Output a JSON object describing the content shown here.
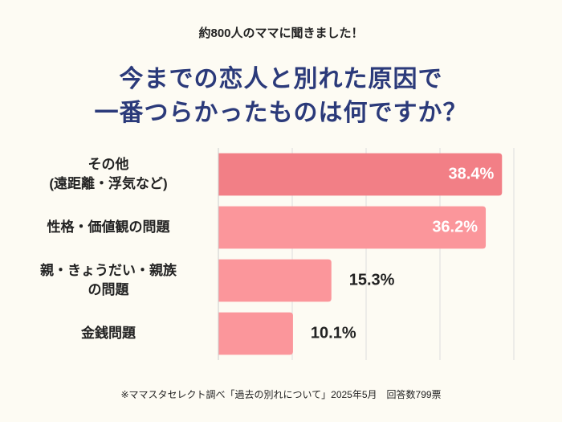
{
  "chart_data": {
    "type": "barh",
    "subtitle": "約800人のママに聞きました！",
    "title": "今までの恋人と別れた原因で\n一番つらかったものは何ですか？",
    "categories": [
      "その他\n(遠距離・浮気など)",
      "性格・価値観の問題",
      "親・きょうだい・親族\nの問題",
      "金銭問題"
    ],
    "values": [
      38.4,
      36.2,
      15.3,
      10.1
    ],
    "value_labels": [
      "38.4%",
      "36.2%",
      "15.3%",
      "10.1%"
    ],
    "colors": [
      "#f27f86",
      "#fb969b",
      "#fb969b",
      "#fb969b"
    ],
    "xlim": [
      0,
      40
    ],
    "xticks": [
      0,
      10,
      20,
      30,
      40
    ],
    "grid": true,
    "note": "※ママスタセレクト調べ「過去の別れについて」2025年5月　回答数799票"
  }
}
